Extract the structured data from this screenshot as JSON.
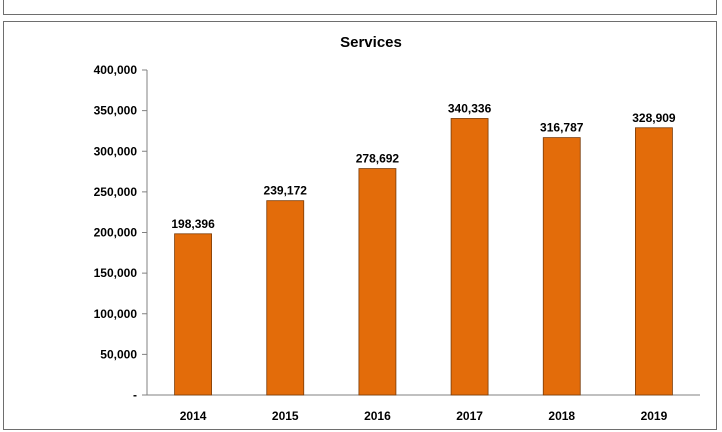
{
  "chart_data": {
    "type": "bar",
    "title": "Services",
    "xlabel": "",
    "ylabel": "",
    "categories": [
      "2014",
      "2015",
      "2016",
      "2017",
      "2018",
      "2019"
    ],
    "values": [
      198396,
      239172,
      278692,
      340336,
      316787,
      328909
    ],
    "value_labels": [
      "198,396",
      "239,172",
      "278,692",
      "340,336",
      "316,787",
      "328,909"
    ],
    "ylim": [
      0,
      400000
    ],
    "y_ticks": [
      0,
      50000,
      100000,
      150000,
      200000,
      250000,
      300000,
      350000,
      400000
    ],
    "y_tick_labels": [
      "-",
      "50,000",
      "100,000",
      "150,000",
      "200,000",
      "250,000",
      "300,000",
      "350,000",
      "400,000"
    ],
    "bar_color": "#E36C0A",
    "grid": false,
    "legend": "none"
  }
}
